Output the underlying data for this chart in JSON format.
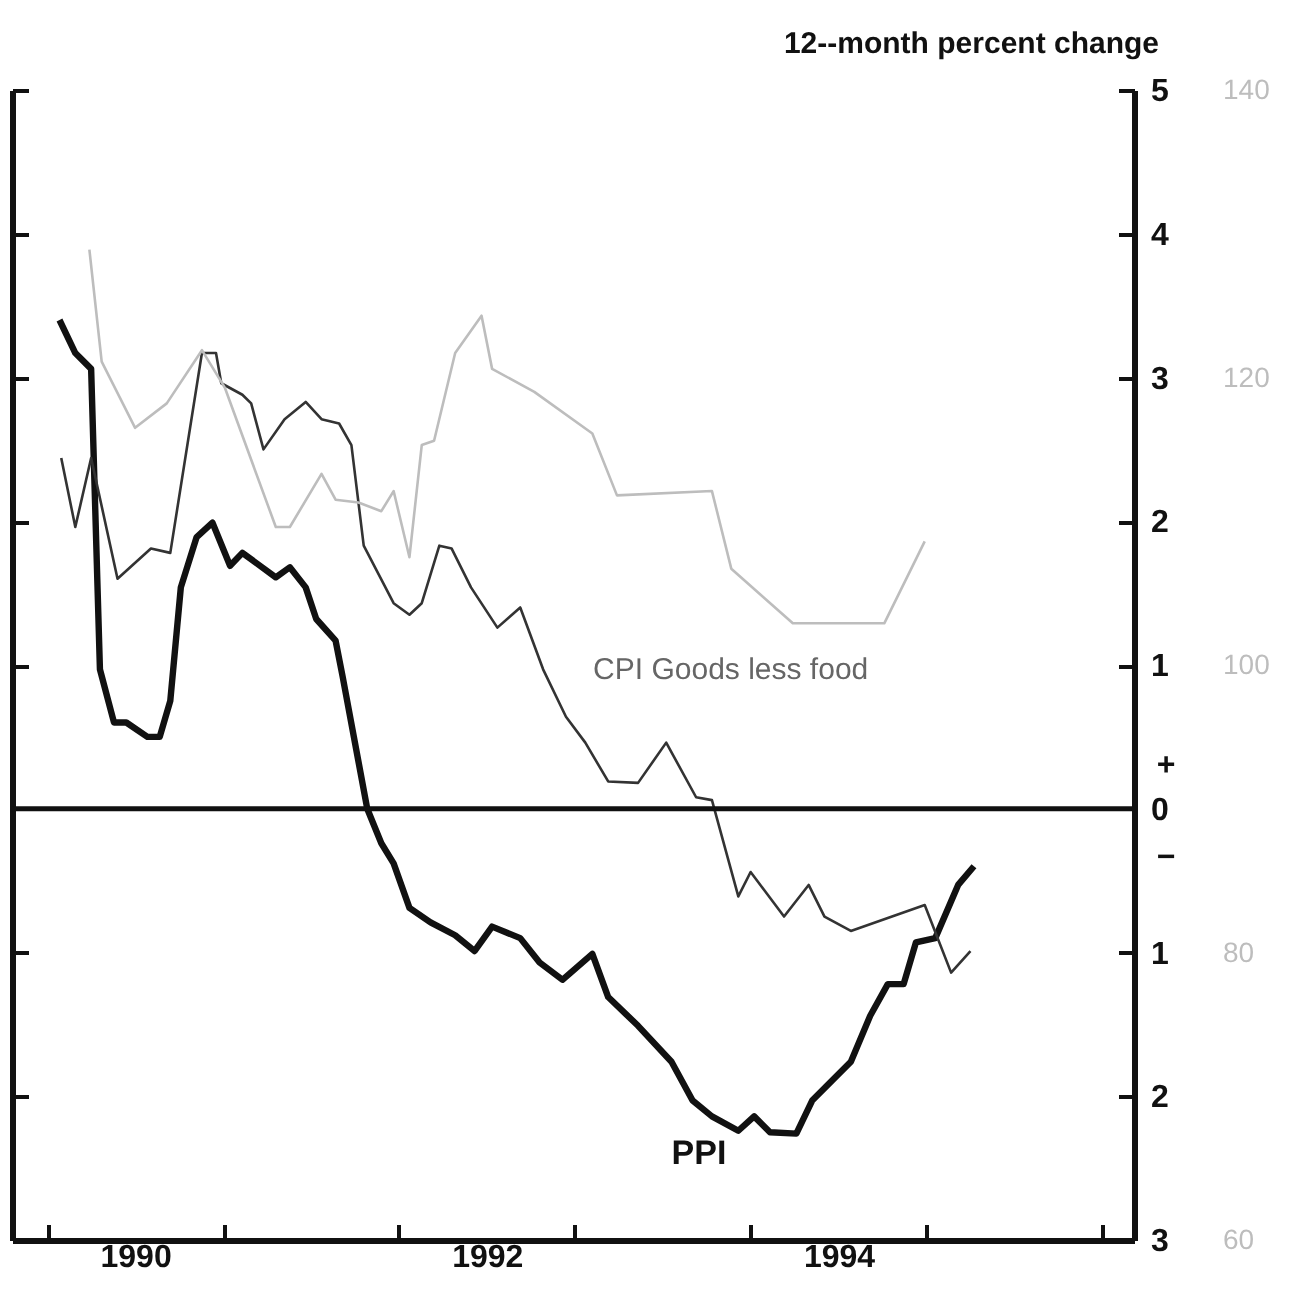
{
  "chart_data": {
    "type": "line",
    "ylabel": "12--month percent change",
    "xlim": [
      1989.8,
      1996.18
    ],
    "xticks": [
      {
        "value": 1990,
        "label": null
      },
      {
        "value": 1990.5,
        "label": "1990"
      },
      {
        "value": 1991,
        "label": null
      },
      {
        "value": 1992,
        "label": null
      },
      {
        "value": 1992.5,
        "label": "1992"
      },
      {
        "value": 1993,
        "label": null
      },
      {
        "value": 1994,
        "label": null
      },
      {
        "value": 1994.5,
        "label": "1994"
      },
      {
        "value": 1995,
        "label": null
      },
      {
        "value": 1996,
        "label": null
      }
    ],
    "ylim": [
      -3,
      5
    ],
    "yticks": [
      5,
      4,
      3,
      2,
      1,
      0,
      {
        "value": -1,
        "label": "1"
      },
      {
        "value": -2,
        "label": "2"
      },
      {
        "value": -3,
        "label": "3"
      }
    ],
    "y2lim": [
      60,
      140
    ],
    "y2ticks": [
      60,
      80,
      100,
      120,
      140
    ],
    "annotations": [
      "+",
      "−"
    ],
    "ref_lines": [
      {
        "axis": "y",
        "value": 0,
        "color": "#111111"
      }
    ],
    "series": [
      {
        "name": "PPI",
        "color": "#111111",
        "x": [
          1990.07,
          1990.16,
          1990.25,
          1990.3,
          1990.38,
          1990.45,
          1990.57,
          1990.64,
          1990.7,
          1990.76,
          1990.85,
          1990.94,
          1991.04,
          1991.11,
          1991.3,
          1991.38,
          1991.47,
          1991.53,
          1991.64,
          1991.68,
          1991.82,
          1991.9,
          1991.97,
          1992.06,
          1992.18,
          1992.32,
          1992.43,
          1992.53,
          1992.69,
          1992.8,
          1992.93,
          1993.1,
          1993.19,
          1993.36,
          1993.55,
          1993.67,
          1993.78,
          1993.93,
          1994.02,
          1994.11,
          1994.26,
          1994.35,
          1994.57,
          1994.68,
          1994.78,
          1994.87,
          1994.94,
          1995.05,
          1995.18,
          1995.27
        ],
        "values": [
          3.4,
          3.17,
          3.06,
          0.97,
          0.6,
          0.6,
          0.5,
          0.5,
          0.75,
          1.54,
          1.89,
          1.99,
          1.69,
          1.78,
          1.61,
          1.68,
          1.54,
          1.32,
          1.17,
          0.92,
          0.0,
          -0.24,
          -0.38,
          -0.69,
          -0.79,
          -0.88,
          -0.99,
          -0.82,
          -0.9,
          -1.07,
          -1.19,
          -1.01,
          -1.31,
          -1.51,
          -1.76,
          -2.03,
          -2.14,
          -2.24,
          -2.14,
          -2.25,
          -2.26,
          -2.03,
          -1.76,
          -1.44,
          -1.22,
          -1.22,
          -0.93,
          -0.9,
          -0.53,
          -0.4
        ]
      },
      {
        "name": "CPI Goods less food",
        "color": "#333333",
        "x": [
          1990.08,
          1990.16,
          1990.25,
          1990.4,
          1990.59,
          1990.7,
          1990.88,
          1990.96,
          1990.99,
          1991.11,
          1991.16,
          1991.23,
          1991.35,
          1991.47,
          1991.56,
          1991.66,
          1991.73,
          1991.8,
          1991.97,
          1992.06,
          1992.13,
          1992.23,
          1992.3,
          1992.41,
          1992.56,
          1992.69,
          1992.82,
          1992.95,
          1993.06,
          1993.19,
          1993.36,
          1993.52,
          1993.69,
          1993.78,
          1993.93,
          1994.0,
          1994.19,
          1994.33,
          1994.42,
          1994.57,
          1994.99,
          1995.14,
          1995.25
        ],
        "values": [
          2.44,
          1.96,
          2.44,
          1.6,
          1.81,
          1.78,
          3.17,
          3.17,
          2.96,
          2.88,
          2.82,
          2.5,
          2.71,
          2.83,
          2.71,
          2.68,
          2.53,
          1.83,
          1.43,
          1.35,
          1.43,
          1.83,
          1.81,
          1.54,
          1.26,
          1.4,
          0.97,
          0.64,
          0.46,
          0.19,
          0.18,
          0.46,
          0.08,
          0.06,
          -0.61,
          -0.44,
          -0.75,
          -0.53,
          -0.75,
          -0.85,
          -0.67,
          -1.14,
          -0.99
        ]
      },
      {
        "color": "#bdbdbd",
        "axis": "y2",
        "x": [
          1990.24,
          1990.31,
          1990.5,
          1990.68,
          1990.88,
          1991.01,
          1991.3,
          1991.38,
          1991.56,
          1991.64,
          1991.77,
          1991.9,
          1991.97,
          1992.06,
          1992.13,
          1992.2,
          1992.32,
          1992.47,
          1992.53,
          1992.77,
          1993.1,
          1993.24,
          1993.78,
          1993.89,
          1994.24,
          1994.76,
          1994.99
        ],
        "values": [
          128.9,
          121.1,
          116.5,
          118.2,
          121.9,
          119.3,
          109.6,
          109.6,
          113.3,
          111.5,
          111.3,
          110.7,
          112.1,
          107.5,
          115.3,
          115.6,
          121.7,
          124.3,
          120.6,
          119.0,
          116.1,
          111.8,
          112.1,
          106.7,
          102.9,
          102.9,
          108.6
        ]
      }
    ]
  }
}
